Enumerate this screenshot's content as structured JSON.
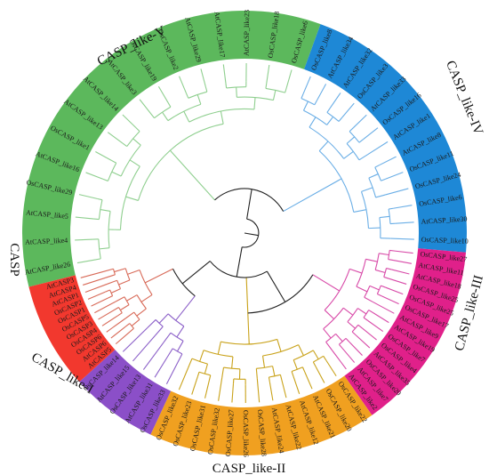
{
  "clades": [
    {
      "name": "CASP_like-V",
      "color": "#5cb85c",
      "line": "#8fcf8f",
      "leaves": [
        "AtCASP_like26",
        "AtCASP_like4",
        "AtCASP_like5",
        "OsCASP_like29",
        "AtCASP_like16",
        "OsCASP_like1",
        "AtCASP_like13",
        "AtCASP_like14",
        "AtCASP_like3",
        "OsCASP_like19",
        "OsCASP_like2",
        "AtCASP_like29",
        "AtCASP_like17",
        "AtCASP_like23",
        "OsCASP_like18",
        "OsCASP_like6"
      ]
    },
    {
      "name": "CASP_like-IV",
      "color": "#1e88d6",
      "line": "#6aaee6",
      "leaves": [
        "OsCASP_like8",
        "AtCASP_like34",
        "AtCASP_like32",
        "OsCASP_like3",
        "AtCASP_like33",
        "OsCASP_like16",
        "AtCASP_like1",
        "AtCASP_like8",
        "OsCASP_like11",
        "OsCASP_like24",
        "OsCASP_like6",
        "AtCASP_like30",
        "OsCASP_like10"
      ]
    },
    {
      "name": "CASP_like-III",
      "color": "#e0208a",
      "line": "#d84aa8",
      "leaves": [
        "OsCASP_like27",
        "AtCASP_like11",
        "AtCASP_like18",
        "OsCASP_like25",
        "OsCASP_like25",
        "OsCASP_like17",
        "AtCASP_like9",
        "AtCASP_like19",
        "OsCASP_like7",
        "OsCASP_like4",
        "AtCASP_like35",
        "OsCASP_like20",
        "AtCASP_like7",
        "AtCASP_like2"
      ]
    },
    {
      "name": "CASP_like-II",
      "color": "#f0a020",
      "line": "#c9a21a",
      "leaves": [
        "OsCASP_like22",
        "OsCASP_like20",
        "AtCASP_like21",
        "AtCASP_like12",
        "AtCASP_like22",
        "AtCASP_like24",
        "OsCASP_like28",
        "OsCASP_like26",
        "OsCASP_like27",
        "OsCASP_like32",
        "OsCASP_like31",
        "OsCASP_like23",
        "OsCASP_like32"
      ]
    },
    {
      "name": "CASP_like-I",
      "color": "#8b4fc8",
      "line": "#8b5fc8",
      "leaves": [
        "OsCASP_like33",
        "AtCASP_like31",
        "OsCASP_like13",
        "AtCASP_like15",
        "OsCASP_like14"
      ]
    },
    {
      "name": "CASP",
      "color": "#f2382e",
      "line": "#d86a58",
      "leaves": [
        "AtCASP5",
        "AtCASP6",
        "OsCASP6",
        "OsCASP4",
        "OsCASP3",
        "OsCASP5",
        "OsCASP1",
        "OsCASP2",
        "AtCASP1",
        "AtCASP4",
        "AtCASP3"
      ]
    }
  ],
  "core_color": "#222222"
}
